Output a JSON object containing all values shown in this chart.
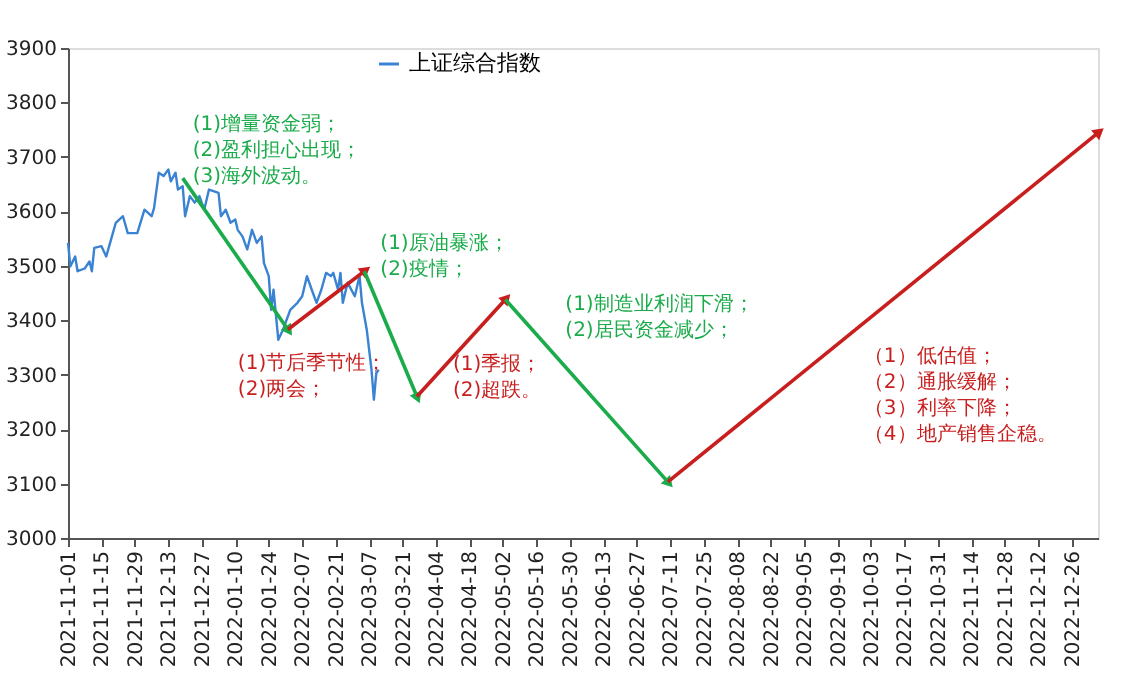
{
  "chart_data": {
    "type": "line",
    "xlim": [
      "2021-11-01",
      "2023-01-06"
    ],
    "xticks": [
      "2021-11-01",
      "2021-11-15",
      "2021-11-29",
      "2021-12-13",
      "2021-12-27",
      "2022-01-10",
      "2022-01-24",
      "2022-02-07",
      "2022-02-21",
      "2022-03-07",
      "2022-03-21",
      "2022-04-04",
      "2022-04-18",
      "2022-05-02",
      "2022-05-16",
      "2022-05-30",
      "2022-06-13",
      "2022-06-27",
      "2022-07-11",
      "2022-07-25",
      "2022-08-08",
      "2022-08-22",
      "2022-09-05",
      "2022-09-19",
      "2022-10-03",
      "2022-10-17",
      "2022-10-31",
      "2022-11-14",
      "2022-11-28",
      "2022-12-12",
      "2022-12-26"
    ],
    "ylim": [
      3000,
      3900
    ],
    "yticks": [
      3000,
      3100,
      3200,
      3300,
      3400,
      3500,
      3600,
      3700,
      3800,
      3900
    ],
    "grid": false,
    "legend": "top",
    "series": [
      {
        "name": "上证综合指数",
        "color": "#3a82d2",
        "x": [
          "2021-11-01",
          "2021-11-02",
          "2021-11-04",
          "2021-11-05",
          "2021-11-08",
          "2021-11-10",
          "2021-11-11",
          "2021-11-12",
          "2021-11-15",
          "2021-11-17",
          "2021-11-19",
          "2021-11-21",
          "2021-11-24",
          "2021-11-26",
          "2021-11-30",
          "2021-12-03",
          "2021-12-06",
          "2021-12-07",
          "2021-12-09",
          "2021-12-11",
          "2021-12-13",
          "2021-12-14",
          "2021-12-16",
          "2021-12-17",
          "2021-12-19",
          "2021-12-20",
          "2021-12-22",
          "2021-12-24",
          "2021-12-26",
          "2021-12-28",
          "2021-12-30",
          "2022-01-03",
          "2022-01-04",
          "2022-01-06",
          "2022-01-08",
          "2022-01-10",
          "2022-01-11",
          "2022-01-13",
          "2022-01-15",
          "2022-01-17",
          "2022-01-19",
          "2022-01-21",
          "2022-01-22",
          "2022-01-24",
          "2022-01-25",
          "2022-01-26",
          "2022-01-28",
          "2022-01-30",
          "2022-02-02",
          "2022-02-05",
          "2022-02-07",
          "2022-02-09",
          "2022-02-11",
          "2022-02-13",
          "2022-02-15",
          "2022-02-17",
          "2022-02-19",
          "2022-02-20",
          "2022-02-22",
          "2022-02-23",
          "2022-02-24",
          "2022-02-26",
          "2022-03-01",
          "2022-03-03",
          "2022-03-04",
          "2022-03-06",
          "2022-03-08",
          "2022-03-09",
          "2022-03-10",
          "2022-03-11"
        ],
        "values": [
          3542,
          3499,
          3517,
          3490,
          3495,
          3508,
          3490,
          3533,
          3536,
          3517,
          3548,
          3579,
          3591,
          3560,
          3560,
          3603,
          3591,
          3606,
          3671,
          3665,
          3677,
          3655,
          3671,
          3640,
          3646,
          3591,
          3628,
          3616,
          3628,
          3603,
          3640,
          3634,
          3591,
          3603,
          3579,
          3585,
          3566,
          3554,
          3530,
          3566,
          3542,
          3554,
          3505,
          3481,
          3419,
          3456,
          3364,
          3383,
          3419,
          3432,
          3444,
          3481,
          3456,
          3432,
          3456,
          3487,
          3481,
          3487,
          3456,
          3487,
          3432,
          3469,
          3444,
          3481,
          3432,
          3383,
          3309,
          3254,
          3303,
          3309
        ]
      },
      {
        "color": "#1aab4a",
        "x": [
          "2021-12-19",
          "2022-02-01"
        ],
        "values": [
          3661,
          3383
        ]
      },
      {
        "color": "#c81e1e",
        "x": [
          "2022-02-01",
          "2022-03-05"
        ],
        "values": [
          3383,
          3490
        ]
      },
      {
        "color": "#1aab4a",
        "x": [
          "2022-03-05",
          "2022-03-27"
        ],
        "values": [
          3490,
          3260
        ]
      },
      {
        "color": "#c81e1e",
        "x": [
          "2022-03-27",
          "2022-05-03"
        ],
        "values": [
          3260,
          3438
        ]
      },
      {
        "color": "#1aab4a",
        "x": [
          "2022-05-03",
          "2022-07-10"
        ],
        "values": [
          3438,
          3103
        ]
      },
      {
        "color": "#c81e1e",
        "x": [
          "2022-07-10",
          "2023-01-06"
        ],
        "values": [
          3103,
          3744
        ]
      }
    ],
    "annotations": [
      "(1)增量资金弱；(2)盈利担心出现；(3)海外波动。",
      "(1)节后季节性；(2)两会；",
      "(1)原油暴涨；(2)疫情；",
      "(1)季报；(2)超跌。",
      "(1)制造业利润下滑；(2)居民资金减少；",
      "（1）低估值；（2）通胀缓解；（3）利率下降；（4）地产销售企稳。"
    ]
  }
}
